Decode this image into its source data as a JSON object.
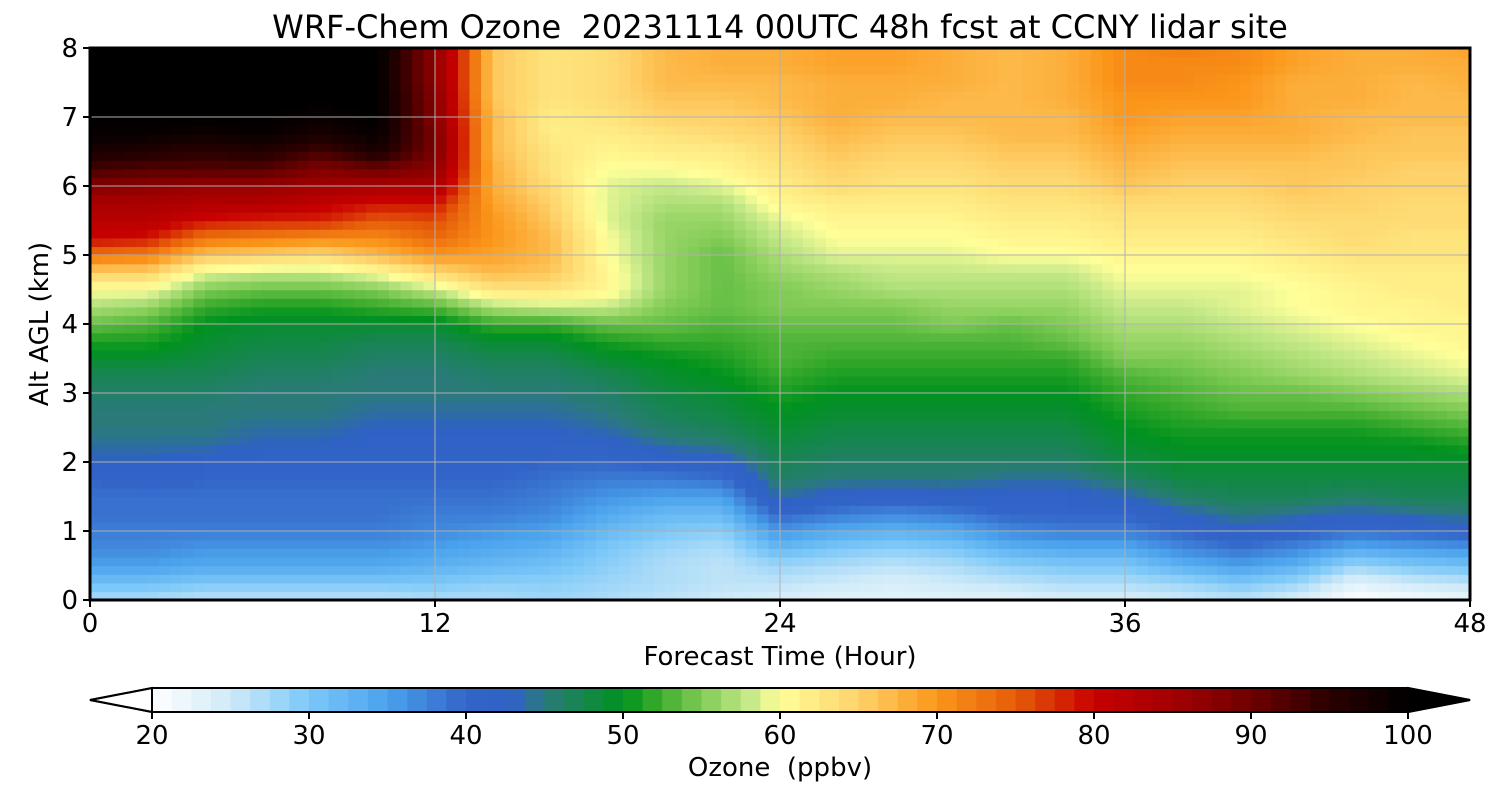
{
  "chart_data": {
    "type": "heatmap",
    "title": "WRF-Chem Ozone  20231114 00UTC 48h fcst at CCNY lidar site",
    "xlabel": "Forecast Time (Hour)",
    "ylabel": "Alt AGL (km)",
    "xlim": [
      0,
      48
    ],
    "ylim": [
      0,
      8
    ],
    "xticks": [
      0,
      12,
      24,
      36,
      48
    ],
    "yticks": [
      0,
      1,
      2,
      3,
      4,
      5,
      6,
      7,
      8
    ],
    "grid": true,
    "colorbar": {
      "label": "Ozone  (ppbv)",
      "orientation": "horizontal",
      "placement": "bottom",
      "range": [
        20,
        100
      ],
      "ticks": [
        20,
        30,
        40,
        50,
        60,
        70,
        80,
        90,
        100
      ],
      "extend": "both",
      "colormap": [
        [
          20,
          "#ffffff"
        ],
        [
          25,
          "#cfeaf8"
        ],
        [
          30,
          "#7cc8f8"
        ],
        [
          35,
          "#4aa2ec"
        ],
        [
          40,
          "#3365c8"
        ],
        [
          43,
          "#2f62c4"
        ],
        [
          45,
          "#2a7a7a"
        ],
        [
          50,
          "#00921e"
        ],
        [
          52,
          "#34a82a"
        ],
        [
          55,
          "#80cb55"
        ],
        [
          58,
          "#c4e888"
        ],
        [
          60,
          "#ffff99"
        ],
        [
          65,
          "#fed26a"
        ],
        [
          70,
          "#fb961a"
        ],
        [
          75,
          "#e65c09"
        ],
        [
          80,
          "#c80000"
        ],
        [
          85,
          "#a20000"
        ],
        [
          90,
          "#6e0000"
        ],
        [
          95,
          "#2a0000"
        ],
        [
          100,
          "#000000"
        ]
      ]
    },
    "x": [
      0,
      2,
      4,
      6,
      8,
      10,
      12,
      14,
      16,
      18,
      20,
      22,
      24,
      26,
      28,
      30,
      32,
      34,
      36,
      38,
      40,
      42,
      44,
      46,
      48
    ],
    "y": [
      0,
      0.25,
      0.5,
      0.75,
      1,
      1.25,
      1.5,
      1.75,
      2,
      2.25,
      2.5,
      2.75,
      3,
      3.25,
      3.5,
      3.75,
      4,
      4.25,
      4.5,
      4.75,
      5,
      5.25,
      5.5,
      5.75,
      6,
      6.25,
      6.5,
      6.75,
      7,
      7.25,
      7.5,
      7.75,
      8
    ],
    "z_description": "ozone mixing ratio (ppbv); z[i][j] at forecast hour x[i] and altitude y[j]",
    "z": [
      [
        27,
        31,
        35,
        37,
        38,
        39,
        39,
        40,
        43,
        44,
        45,
        45,
        46,
        47,
        49,
        51,
        54,
        57,
        60,
        65,
        73,
        80,
        82,
        84,
        88,
        93,
        97,
        99,
        100,
        100,
        100,
        100,
        100
      ],
      [
        27,
        31,
        35,
        37,
        38,
        39,
        39,
        41,
        43,
        44,
        45,
        45,
        46,
        47,
        49,
        51,
        53,
        56,
        60,
        65,
        72,
        79,
        82,
        84,
        87,
        92,
        96,
        99,
        100,
        100,
        100,
        100,
        100
      ],
      [
        26,
        30,
        34,
        36,
        38,
        39,
        39,
        40,
        42,
        44,
        45,
        45,
        46,
        47,
        48,
        49,
        50,
        52,
        55,
        59,
        66,
        73,
        79,
        83,
        86,
        92,
        95,
        98,
        100,
        100,
        100,
        100,
        100
      ],
      [
        26,
        30,
        34,
        36,
        38,
        39,
        39,
        40,
        41,
        43,
        44,
        45,
        45,
        46,
        47,
        48,
        49,
        51,
        54,
        58,
        65,
        72,
        78,
        83,
        86,
        92,
        96,
        99,
        100,
        100,
        100,
        100,
        100
      ],
      [
        26,
        30,
        34,
        36,
        38,
        39,
        39,
        40,
        41,
        43,
        44,
        45,
        45,
        46,
        47,
        48,
        49,
        51,
        54,
        58,
        64,
        71,
        78,
        81,
        85,
        88,
        93,
        97,
        99,
        100,
        100,
        100,
        100
      ],
      [
        26,
        30,
        34,
        36,
        38,
        39,
        39,
        40,
        41,
        42,
        43,
        44,
        45,
        45,
        46,
        47,
        49,
        52,
        55,
        60,
        67,
        71,
        75,
        79,
        84,
        90,
        97,
        99,
        100,
        100,
        100,
        100,
        100
      ],
      [
        27,
        30,
        33,
        35,
        37,
        38,
        39,
        40,
        41,
        42,
        43,
        44,
        45,
        45,
        46,
        47,
        49,
        53,
        58,
        64,
        70,
        74,
        76,
        79,
        84,
        87,
        89,
        89,
        88,
        88,
        87,
        87,
        87
      ],
      [
        27,
        29,
        32,
        34,
        36,
        38,
        39,
        40,
        41,
        42,
        43,
        44,
        45,
        46,
        47,
        49,
        52,
        57,
        63,
        67,
        69,
        70,
        70,
        69,
        68,
        68,
        67,
        67,
        67,
        66,
        66,
        66,
        66
      ],
      [
        28,
        29,
        31,
        33,
        35,
        37,
        38,
        39,
        40,
        42,
        43,
        44,
        45,
        46,
        47,
        49,
        52,
        58,
        63,
        66,
        67,
        67,
        66,
        65,
        64,
        63,
        63,
        62,
        62,
        63,
        63,
        63,
        63
      ],
      [
        27,
        28,
        29,
        30,
        32,
        34,
        36,
        38,
        40,
        42,
        44,
        45,
        46,
        47,
        49,
        51,
        54,
        58,
        61,
        61,
        60,
        60,
        59,
        59,
        59,
        60,
        61,
        62,
        63,
        64,
        64,
        64,
        64
      ],
      [
        26,
        27,
        27,
        28,
        30,
        32,
        35,
        38,
        41,
        44,
        46,
        47,
        48,
        49,
        50,
        52,
        54,
        55,
        56,
        56,
        56,
        56,
        56,
        57,
        58,
        60,
        62,
        63,
        65,
        66,
        67,
        67,
        67
      ],
      [
        25,
        26,
        26,
        27,
        29,
        32,
        35,
        39,
        42,
        45,
        47,
        48,
        49,
        50,
        51,
        52,
        53,
        54,
        54,
        54,
        54,
        55,
        56,
        57,
        59,
        61,
        62,
        64,
        65,
        66,
        67,
        68,
        68
      ],
      [
        24,
        26,
        28,
        32,
        36,
        40,
        44,
        46,
        47,
        48,
        49,
        50,
        51,
        52,
        53,
        53,
        54,
        55,
        55,
        56,
        57,
        58,
        59,
        61,
        62,
        63,
        64,
        65,
        66,
        67,
        67,
        68,
        68
      ],
      [
        23,
        25,
        27,
        30,
        34,
        38,
        42,
        45,
        46,
        47,
        48,
        49,
        50,
        51,
        52,
        53,
        54,
        55,
        56,
        57,
        59,
        60,
        61,
        62,
        64,
        65,
        66,
        67,
        68,
        68,
        68,
        69,
        69
      ],
      [
        23,
        24,
        26,
        29,
        33,
        37,
        41,
        45,
        46,
        47,
        48,
        49,
        50,
        51,
        52,
        53,
        54,
        55,
        57,
        58,
        59,
        60,
        61,
        62,
        63,
        64,
        65,
        66,
        67,
        68,
        68,
        69,
        69
      ],
      [
        23,
        25,
        27,
        30,
        34,
        38,
        42,
        45,
        46,
        47,
        48,
        49,
        50,
        51,
        52,
        53,
        55,
        56,
        57,
        58,
        59,
        60,
        61,
        62,
        63,
        64,
        65,
        66,
        67,
        67,
        68,
        68,
        68
      ],
      [
        23,
        26,
        29,
        33,
        37,
        40,
        42,
        44,
        46,
        47,
        48,
        49,
        50,
        51,
        52,
        53,
        54,
        56,
        57,
        58,
        60,
        61,
        62,
        63,
        64,
        65,
        66,
        67,
        67,
        67,
        67,
        67,
        67
      ],
      [
        24,
        27,
        30,
        34,
        38,
        40,
        42,
        44,
        46,
        47,
        48,
        49,
        50,
        51,
        52,
        54,
        55,
        56,
        57,
        58,
        60,
        61,
        62,
        63,
        64,
        65,
        66,
        67,
        67,
        68,
        68,
        68,
        68
      ],
      [
        24,
        27,
        30,
        34,
        38,
        40,
        43,
        46,
        48,
        49,
        50,
        51,
        52,
        53,
        55,
        56,
        57,
        58,
        59,
        60,
        61,
        62,
        63,
        64,
        66,
        67,
        68,
        69,
        70,
        70,
        71,
        71,
        71
      ],
      [
        25,
        28,
        33,
        37,
        40,
        43,
        46,
        48,
        49,
        50,
        51,
        52,
        53,
        54,
        55,
        56,
        57,
        58,
        59,
        60,
        61,
        62,
        63,
        64,
        65,
        66,
        67,
        68,
        69,
        70,
        71,
        71,
        72
      ],
      [
        26,
        30,
        35,
        39,
        42,
        45,
        47,
        48,
        49,
        50,
        51,
        53,
        54,
        55,
        56,
        57,
        58,
        59,
        59,
        60,
        61,
        62,
        63,
        64,
        65,
        66,
        67,
        68,
        69,
        70,
        70,
        71,
        71
      ],
      [
        24,
        28,
        33,
        37,
        41,
        44,
        47,
        48,
        49,
        50,
        51,
        53,
        54,
        56,
        57,
        58,
        59,
        60,
        60,
        61,
        62,
        63,
        64,
        65,
        66,
        66,
        67,
        68,
        68,
        68,
        68,
        69,
        69
      ],
      [
        20,
        23,
        28,
        34,
        39,
        43,
        46,
        48,
        49,
        50,
        51,
        53,
        55,
        57,
        58,
        59,
        60,
        61,
        61,
        62,
        63,
        64,
        64,
        65,
        65,
        66,
        66,
        67,
        67,
        68,
        68,
        68,
        68
      ],
      [
        21,
        25,
        30,
        35,
        40,
        44,
        47,
        48,
        49,
        50,
        52,
        54,
        56,
        58,
        59,
        60,
        61,
        61,
        62,
        62,
        63,
        63,
        64,
        64,
        65,
        65,
        66,
        66,
        67,
        67,
        67,
        68,
        68
      ],
      [
        22,
        26,
        31,
        36,
        41,
        45,
        47,
        48,
        49,
        51,
        53,
        55,
        57,
        59,
        60,
        61,
        61,
        62,
        62,
        62,
        63,
        63,
        64,
        64,
        65,
        65,
        66,
        66,
        67,
        67,
        68,
        68,
        69
      ]
    ]
  }
}
